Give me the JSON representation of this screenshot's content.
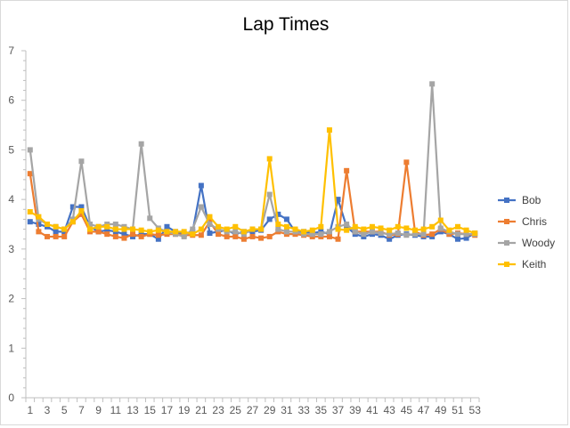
{
  "chart_data": {
    "type": "line",
    "title": "Lap Times",
    "xlabel": "",
    "ylabel": "",
    "ylim": [
      0,
      7
    ],
    "yticks": [
      0,
      1,
      2,
      3,
      4,
      5,
      6,
      7
    ],
    "x": [
      1,
      2,
      3,
      4,
      5,
      6,
      7,
      8,
      9,
      10,
      11,
      12,
      13,
      14,
      15,
      16,
      17,
      18,
      19,
      20,
      21,
      22,
      23,
      24,
      25,
      26,
      27,
      28,
      29,
      30,
      31,
      32,
      33,
      34,
      35,
      36,
      37,
      38,
      39,
      40,
      41,
      42,
      43,
      44,
      45,
      46,
      47,
      48,
      49,
      50,
      51,
      52,
      53
    ],
    "xtick_labels": [
      "1",
      "3",
      "5",
      "7",
      "9",
      "11",
      "13",
      "15",
      "17",
      "19",
      "21",
      "23",
      "25",
      "27",
      "29",
      "31",
      "33",
      "35",
      "37",
      "39",
      "41",
      "43",
      "45",
      "47",
      "49",
      "51",
      "53"
    ],
    "grid": false,
    "legend_position": "right",
    "series": [
      {
        "name": "Bob",
        "color": "#4472C4",
        "marker": "square",
        "values": [
          3.55,
          3.5,
          3.45,
          3.35,
          3.35,
          3.85,
          3.85,
          3.45,
          3.35,
          3.38,
          3.35,
          3.3,
          3.25,
          3.3,
          3.3,
          3.2,
          3.45,
          3.35,
          3.3,
          3.35,
          4.28,
          3.32,
          3.35,
          3.38,
          3.3,
          3.35,
          3.35,
          3.38,
          3.6,
          3.7,
          3.6,
          3.35,
          3.35,
          3.32,
          3.35,
          3.3,
          4.0,
          3.45,
          3.3,
          3.25,
          3.3,
          3.28,
          3.2,
          3.28,
          3.3,
          3.28,
          3.25,
          3.25,
          3.35,
          3.3,
          3.2,
          3.22,
          3.32
        ]
      },
      {
        "name": "Chris",
        "color": "#ED7D31",
        "marker": "square",
        "values": [
          4.52,
          3.35,
          3.25,
          3.25,
          3.25,
          3.55,
          3.7,
          3.35,
          3.35,
          3.3,
          3.25,
          3.22,
          3.3,
          3.25,
          3.3,
          3.28,
          3.3,
          3.3,
          3.28,
          3.28,
          3.28,
          3.55,
          3.3,
          3.25,
          3.25,
          3.2,
          3.25,
          3.22,
          3.25,
          3.35,
          3.3,
          3.3,
          3.28,
          3.25,
          3.25,
          3.25,
          3.2,
          4.58,
          3.35,
          3.35,
          3.35,
          3.35,
          3.28,
          3.3,
          4.75,
          3.35,
          3.28,
          3.3,
          3.4,
          3.3,
          3.32,
          3.3,
          3.28
        ]
      },
      {
        "name": "Woody",
        "color": "#A5A5A5",
        "marker": "square",
        "values": [
          5.0,
          3.6,
          3.5,
          3.45,
          3.4,
          3.6,
          4.77,
          3.5,
          3.45,
          3.5,
          3.5,
          3.45,
          3.4,
          5.12,
          3.62,
          3.42,
          3.35,
          3.3,
          3.25,
          3.4,
          3.85,
          3.5,
          3.4,
          3.35,
          3.35,
          3.3,
          3.4,
          3.4,
          4.1,
          3.4,
          3.35,
          3.35,
          3.3,
          3.3,
          3.3,
          3.35,
          3.45,
          3.5,
          3.35,
          3.3,
          3.35,
          3.32,
          3.3,
          3.32,
          3.28,
          3.3,
          3.3,
          6.33,
          3.42,
          3.35,
          3.3,
          3.3,
          3.3
        ]
      },
      {
        "name": "Keith",
        "color": "#FFC000",
        "marker": "square",
        "values": [
          3.75,
          3.65,
          3.5,
          3.45,
          3.4,
          3.55,
          3.77,
          3.4,
          3.45,
          3.45,
          3.4,
          3.4,
          3.4,
          3.38,
          3.35,
          3.38,
          3.35,
          3.35,
          3.35,
          3.3,
          3.4,
          3.65,
          3.45,
          3.4,
          3.45,
          3.35,
          3.4,
          3.4,
          4.82,
          3.5,
          3.45,
          3.4,
          3.35,
          3.38,
          3.45,
          5.4,
          3.4,
          3.38,
          3.45,
          3.4,
          3.45,
          3.42,
          3.38,
          3.45,
          3.42,
          3.38,
          3.4,
          3.45,
          3.58,
          3.38,
          3.45,
          3.38,
          3.32
        ]
      }
    ]
  }
}
